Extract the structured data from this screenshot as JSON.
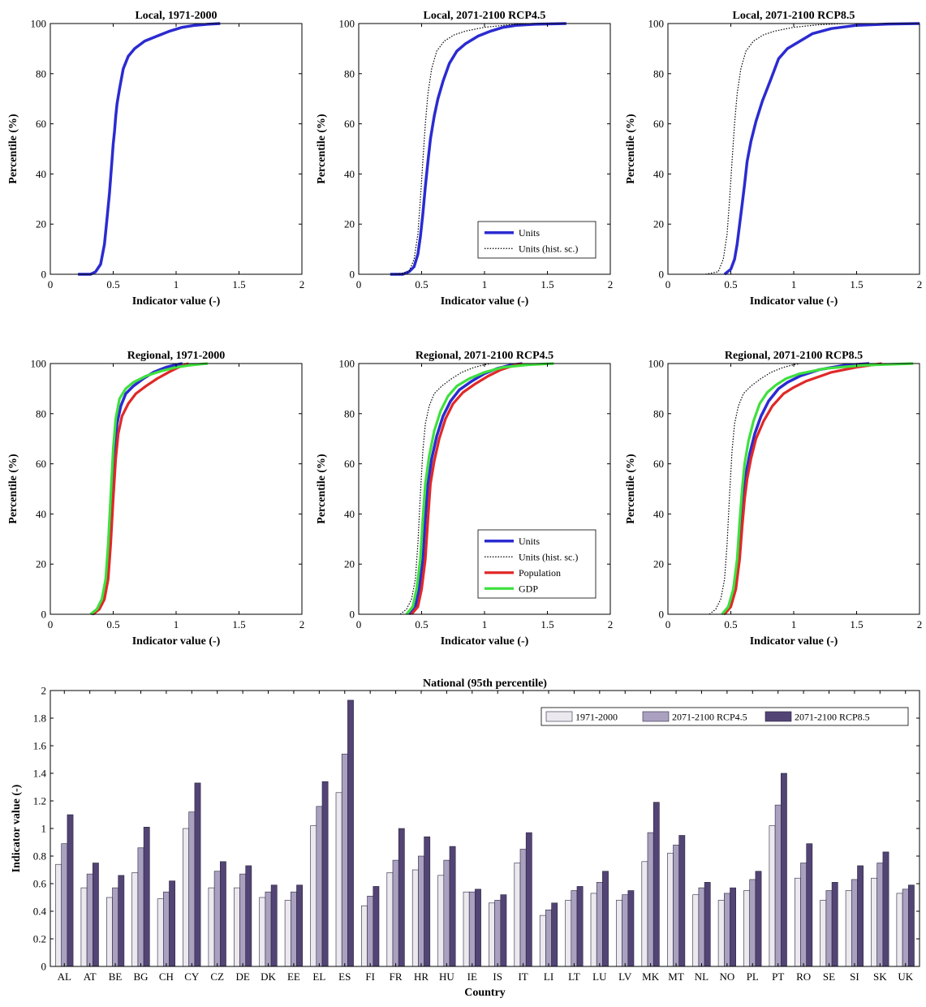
{
  "chart_data": [
    {
      "type": "line",
      "title": "Local, 1971-2000",
      "xlabel": "Indicator value (-)",
      "ylabel": "Percentile (%)",
      "xlim": [
        0,
        2
      ],
      "ylim": [
        0,
        100
      ],
      "xticks": [
        "0",
        "0.5",
        "1",
        "1.5",
        "2"
      ],
      "yticks": [
        "0",
        "20",
        "40",
        "60",
        "80",
        "100"
      ],
      "legend": [],
      "series": [
        {
          "style": "units",
          "x": [
            0.22,
            0.32,
            0.36,
            0.4,
            0.43,
            0.45,
            0.47,
            0.49,
            0.5,
            0.51,
            0.52,
            0.53,
            0.55,
            0.58,
            0.62,
            0.67,
            0.75,
            0.85,
            0.95,
            1.05,
            1.15,
            1.25,
            1.35
          ],
          "y": [
            0,
            0,
            1,
            4,
            12,
            22,
            32,
            45,
            52,
            57,
            63,
            68,
            74,
            82,
            87,
            90,
            93,
            95,
            97,
            98.5,
            99.3,
            99.7,
            100
          ]
        }
      ]
    },
    {
      "type": "line",
      "title": "Local, 2071-2100 RCP4.5",
      "xlabel": "Indicator value (-)",
      "ylabel": "Percentile (%)",
      "xlim": [
        0,
        2
      ],
      "ylim": [
        0,
        100
      ],
      "xticks": [
        "0",
        "0.5",
        "1",
        "1.5",
        "2"
      ],
      "yticks": [
        "0",
        "20",
        "40",
        "60",
        "80",
        "100"
      ],
      "legend": [
        "Units",
        "Units (hist. sc.)"
      ],
      "legend_position": "bottom-right",
      "series": [
        {
          "style": "units",
          "name": "Units",
          "x": [
            0.25,
            0.35,
            0.4,
            0.44,
            0.47,
            0.49,
            0.51,
            0.53,
            0.55,
            0.57,
            0.6,
            0.63,
            0.67,
            0.72,
            0.78,
            0.85,
            0.95,
            1.05,
            1.15,
            1.25,
            1.4,
            1.65
          ],
          "y": [
            0,
            0,
            1,
            3,
            8,
            15,
            24,
            35,
            45,
            54,
            63,
            70,
            77,
            84,
            89,
            92,
            95,
            97,
            98.5,
            99.3,
            99.7,
            100
          ]
        },
        {
          "style": "hist",
          "name": "Units (hist. sc.)",
          "x": [
            0.3,
            0.4,
            0.44,
            0.47,
            0.49,
            0.51,
            0.53,
            0.55,
            0.58,
            0.62,
            0.68,
            0.76,
            0.85,
            1.0,
            1.2,
            1.4
          ],
          "y": [
            0,
            1,
            6,
            16,
            30,
            45,
            60,
            72,
            82,
            89,
            93,
            95.5,
            97,
            98.5,
            99.5,
            100
          ]
        }
      ]
    },
    {
      "type": "line",
      "title": "Local, 2071-2100 RCP8.5",
      "xlabel": "Indicator value (-)",
      "ylabel": "Percentile (%)",
      "xlim": [
        0,
        2
      ],
      "ylim": [
        0,
        100
      ],
      "xticks": [
        "0",
        "0.5",
        "1",
        "1.5",
        "2"
      ],
      "yticks": [
        "0",
        "20",
        "40",
        "60",
        "80",
        "100"
      ],
      "legend": [],
      "series": [
        {
          "style": "units",
          "x": [
            0.45,
            0.5,
            0.53,
            0.55,
            0.57,
            0.59,
            0.61,
            0.63,
            0.66,
            0.7,
            0.75,
            0.82,
            0.88,
            0.95,
            1.05,
            1.15,
            1.3,
            1.5,
            1.75,
            2.0
          ],
          "y": [
            0,
            2,
            6,
            12,
            20,
            28,
            36,
            45,
            53,
            61,
            69,
            78,
            86,
            90,
            93,
            96,
            98,
            99.3,
            99.8,
            100
          ]
        },
        {
          "style": "hist",
          "x": [
            0.3,
            0.4,
            0.44,
            0.47,
            0.49,
            0.51,
            0.53,
            0.55,
            0.58,
            0.62,
            0.68,
            0.76,
            0.85,
            1.0,
            1.2,
            1.4
          ],
          "y": [
            0,
            1,
            6,
            16,
            30,
            45,
            60,
            72,
            82,
            89,
            93,
            95.5,
            97,
            98.5,
            99.5,
            100
          ]
        }
      ]
    },
    {
      "type": "line",
      "title": "Regional, 1971-2000",
      "xlabel": "Indicator value (-)",
      "ylabel": "Percentile (%)",
      "xlim": [
        0,
        2
      ],
      "ylim": [
        0,
        100
      ],
      "xticks": [
        "0",
        "0.5",
        "1",
        "1.5",
        "2"
      ],
      "yticks": [
        "0",
        "20",
        "40",
        "60",
        "80",
        "100"
      ],
      "legend": [],
      "series": [
        {
          "style": "units",
          "x": [
            0.33,
            0.38,
            0.42,
            0.45,
            0.47,
            0.49,
            0.51,
            0.53,
            0.56,
            0.6,
            0.66,
            0.74,
            0.82,
            0.92,
            1.0,
            1.05
          ],
          "y": [
            0,
            2,
            6,
            14,
            28,
            48,
            65,
            76,
            83,
            88,
            91,
            94,
            96.5,
            98.5,
            99.5,
            100
          ]
        },
        {
          "style": "pop",
          "x": [
            0.34,
            0.39,
            0.43,
            0.46,
            0.48,
            0.5,
            0.52,
            0.54,
            0.57,
            0.62,
            0.68,
            0.76,
            0.85,
            0.94,
            1.02,
            1.1
          ],
          "y": [
            0,
            2,
            6,
            14,
            28,
            46,
            62,
            72,
            79,
            84,
            88,
            91,
            94,
            96.5,
            98.5,
            100
          ]
        },
        {
          "style": "gdp",
          "x": [
            0.32,
            0.37,
            0.41,
            0.44,
            0.46,
            0.48,
            0.5,
            0.52,
            0.55,
            0.6,
            0.66,
            0.76,
            0.88,
            1.0,
            1.12,
            1.25
          ],
          "y": [
            0,
            2,
            6,
            14,
            28,
            47,
            66,
            78,
            86,
            90,
            92.5,
            95,
            97,
            98.5,
            99.4,
            100
          ]
        }
      ]
    },
    {
      "type": "line",
      "title": "Regional, 2071-2100 RCP4.5",
      "xlabel": "Indicator value (-)",
      "ylabel": "Percentile (%)",
      "xlim": [
        0,
        2
      ],
      "ylim": [
        0,
        100
      ],
      "xticks": [
        "0",
        "0.5",
        "1",
        "1.5",
        "2"
      ],
      "yticks": [
        "0",
        "20",
        "40",
        "60",
        "80",
        "100"
      ],
      "legend": [
        "Units",
        "Units (hist. sc.)",
        "Population",
        "GDP"
      ],
      "legend_position": "bottom-right",
      "series": [
        {
          "style": "units",
          "name": "Units",
          "x": [
            0.4,
            0.45,
            0.48,
            0.51,
            0.53,
            0.55,
            0.58,
            0.62,
            0.67,
            0.73,
            0.8,
            0.9,
            1.0,
            1.1,
            1.2,
            1.3
          ],
          "y": [
            0,
            3,
            10,
            22,
            38,
            52,
            62,
            71,
            79,
            85,
            89.5,
            93,
            96,
            98,
            99.3,
            100
          ]
        },
        {
          "style": "hist",
          "name": "Units (hist. sc.)",
          "x": [
            0.33,
            0.38,
            0.42,
            0.45,
            0.47,
            0.49,
            0.51,
            0.53,
            0.56,
            0.6,
            0.66,
            0.74,
            0.82,
            0.92,
            1.0,
            1.05
          ],
          "y": [
            0,
            2,
            6,
            14,
            28,
            48,
            65,
            76,
            83,
            88,
            91,
            94,
            96.5,
            98.5,
            99.5,
            100
          ]
        },
        {
          "style": "pop",
          "name": "Population",
          "x": [
            0.42,
            0.47,
            0.5,
            0.53,
            0.55,
            0.57,
            0.6,
            0.64,
            0.69,
            0.75,
            0.83,
            0.93,
            1.03,
            1.13,
            1.22,
            1.3
          ],
          "y": [
            0,
            3,
            10,
            22,
            38,
            52,
            61,
            70,
            78,
            84,
            88.5,
            92,
            95,
            97.5,
            99,
            100
          ]
        },
        {
          "style": "gdp",
          "name": "GDP",
          "x": [
            0.38,
            0.43,
            0.46,
            0.49,
            0.51,
            0.53,
            0.56,
            0.6,
            0.65,
            0.71,
            0.78,
            0.88,
            1.0,
            1.15,
            1.35,
            1.55
          ],
          "y": [
            0,
            3,
            10,
            22,
            38,
            52,
            63,
            73,
            81,
            87,
            91,
            94,
            96.5,
            98.5,
            99.5,
            100
          ]
        }
      ]
    },
    {
      "type": "line",
      "title": "Regional, 2071-2100 RCP8.5",
      "xlabel": "Indicator value (-)",
      "ylabel": "Percentile (%)",
      "xlim": [
        0,
        2
      ],
      "ylim": [
        0,
        100
      ],
      "xticks": [
        "0",
        "0.5",
        "1",
        "1.5",
        "2"
      ],
      "yticks": [
        "0",
        "20",
        "40",
        "60",
        "80",
        "100"
      ],
      "legend": [],
      "series": [
        {
          "style": "units",
          "x": [
            0.44,
            0.49,
            0.53,
            0.56,
            0.58,
            0.6,
            0.62,
            0.65,
            0.69,
            0.74,
            0.8,
            0.88,
            0.95,
            1.05,
            1.2,
            1.4,
            1.6
          ],
          "y": [
            0,
            3,
            10,
            22,
            35,
            47,
            56,
            64,
            72,
            79,
            85,
            90,
            92.5,
            95,
            97.5,
            99.3,
            100
          ]
        },
        {
          "style": "hist",
          "x": [
            0.33,
            0.38,
            0.42,
            0.45,
            0.47,
            0.49,
            0.51,
            0.53,
            0.56,
            0.6,
            0.66,
            0.74,
            0.82,
            0.92,
            1.0,
            1.05
          ],
          "y": [
            0,
            2,
            6,
            14,
            28,
            48,
            65,
            76,
            83,
            88,
            91,
            94,
            96.5,
            98.5,
            99.5,
            100
          ]
        },
        {
          "style": "pop",
          "x": [
            0.45,
            0.5,
            0.54,
            0.57,
            0.59,
            0.61,
            0.63,
            0.66,
            0.7,
            0.76,
            0.83,
            0.92,
            1.0,
            1.1,
            1.3,
            1.5,
            1.7
          ],
          "y": [
            0,
            3,
            10,
            22,
            35,
            46,
            54,
            62,
            70,
            77,
            83,
            88,
            90.5,
            93,
            96.5,
            98.5,
            100
          ]
        },
        {
          "style": "gdp",
          "x": [
            0.43,
            0.48,
            0.52,
            0.55,
            0.57,
            0.59,
            0.61,
            0.64,
            0.68,
            0.73,
            0.79,
            0.86,
            0.94,
            1.05,
            1.25,
            1.55,
            1.95
          ],
          "y": [
            0,
            3,
            10,
            22,
            37,
            50,
            60,
            69,
            77,
            84,
            88.5,
            91.5,
            94,
            96,
            98,
            99.3,
            100
          ]
        }
      ]
    },
    {
      "type": "bar",
      "title": "National (95th percentile)",
      "xlabel": "Country",
      "ylabel": "Indicator value (-)",
      "ylim": [
        0,
        2
      ],
      "yticks": [
        "0",
        "0.2",
        "0.4",
        "0.6",
        "0.8",
        "1",
        "1.2",
        "1.4",
        "1.6",
        "1.8",
        "2"
      ],
      "legend_position": "top-right",
      "categories": [
        "AL",
        "AT",
        "BE",
        "BG",
        "CH",
        "CY",
        "CZ",
        "DE",
        "DK",
        "EE",
        "EL",
        "ES",
        "FI",
        "FR",
        "HR",
        "HU",
        "IE",
        "IS",
        "IT",
        "LI",
        "LT",
        "LU",
        "LV",
        "MK",
        "MT",
        "NL",
        "NO",
        "PL",
        "PT",
        "RO",
        "SE",
        "SI",
        "SK",
        "UK"
      ],
      "series": [
        {
          "name": "1971-2000",
          "color": "#ebe8ee",
          "values": [
            0.74,
            0.57,
            0.5,
            0.68,
            0.49,
            1.0,
            0.57,
            0.57,
            0.5,
            0.48,
            1.02,
            1.26,
            0.44,
            0.68,
            0.7,
            0.66,
            0.54,
            0.46,
            0.75,
            0.37,
            0.48,
            0.53,
            0.48,
            0.76,
            0.82,
            0.52,
            0.48,
            0.55,
            1.02,
            0.64,
            0.48,
            0.55,
            0.64,
            0.53
          ]
        },
        {
          "name": "2071-2100 RCP4.5",
          "color": "#a9a1bf",
          "values": [
            0.89,
            0.67,
            0.57,
            0.86,
            0.54,
            1.12,
            0.69,
            0.67,
            0.54,
            0.54,
            1.16,
            1.54,
            0.51,
            0.77,
            0.8,
            0.77,
            0.54,
            0.48,
            0.85,
            0.41,
            0.55,
            0.61,
            0.52,
            0.97,
            0.88,
            0.57,
            0.53,
            0.63,
            1.17,
            0.75,
            0.55,
            0.63,
            0.75,
            0.56
          ]
        },
        {
          "name": "2071-2100 RCP8.5",
          "color": "#524474",
          "values": [
            1.1,
            0.75,
            0.66,
            1.01,
            0.62,
            1.33,
            0.76,
            0.73,
            0.59,
            0.59,
            1.34,
            1.93,
            0.58,
            1.0,
            0.94,
            0.87,
            0.56,
            0.52,
            0.97,
            0.46,
            0.58,
            0.69,
            0.55,
            1.19,
            0.95,
            0.61,
            0.57,
            0.69,
            1.4,
            0.89,
            0.61,
            0.73,
            0.83,
            0.59
          ]
        }
      ]
    }
  ],
  "line_styles": {
    "units": {
      "color": "#2b2bd1",
      "width": 3.5,
      "dash": ""
    },
    "hist": {
      "color": "#000000",
      "width": 1.2,
      "dash": "1.5,1.8"
    },
    "pop": {
      "color": "#e02828",
      "width": 3.2,
      "dash": ""
    },
    "gdp": {
      "color": "#3ee03e",
      "width": 3.2,
      "dash": ""
    }
  }
}
